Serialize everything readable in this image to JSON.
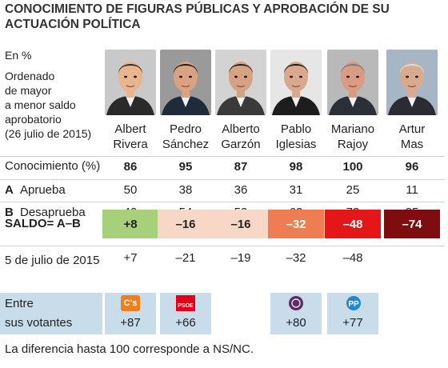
{
  "title": "CONOCIMIENTO DE FIGURAS PÚBLICAS Y APROBACIÓN DE SU ACTUACIÓN POLÍTICA",
  "unit_note": "En %",
  "order_note": [
    "Ordenado",
    "de mayor",
    "a menor saldo",
    "aprobatorio",
    "(26 julio de 2015)"
  ],
  "politicians": [
    {
      "name1": "Albert",
      "name2": "Rivera",
      "conocimiento": "86",
      "aprueba": "50",
      "desaprueba": "42",
      "saldo": "+8",
      "saldo_color": "#a6d07a",
      "saldo_text_color": "#222222",
      "prev": "+7",
      "voters": "+87",
      "party": "C's",
      "party_color": "#f07f1a",
      "skin": "#e8b58f",
      "hair": "#3b2a1e",
      "bg": "#c9c9c9",
      "suit": "#2a2a2a"
    },
    {
      "name1": "Pedro",
      "name2": "Sánchez",
      "conocimiento": "95",
      "aprueba": "38",
      "desaprueba": "54",
      "saldo": "–16",
      "saldo_color": "#f8d7c6",
      "saldo_text_color": "#222222",
      "prev": "–21",
      "voters": "+66",
      "party": "PSOE",
      "party_color": "#e1001a",
      "skin": "#d9a283",
      "hair": "#241a14",
      "bg": "#9a9a9a",
      "suit": "#1f2b3a"
    },
    {
      "name1": "Alberto",
      "name2": "Garzón",
      "conocimiento": "87",
      "aprueba": "36",
      "desaprueba": "52",
      "saldo": "–16",
      "saldo_color": "#f8d7c6",
      "saldo_text_color": "#222222",
      "prev": "–19",
      "voters": "",
      "party": "",
      "party_color": "",
      "skin": "#d6a284",
      "hair": "#2a1f18",
      "bg": "#d3d3d3",
      "suit": "#3a3a3a"
    },
    {
      "name1": "Pablo",
      "name2": "Iglesias",
      "conocimiento": "98",
      "aprueba": "31",
      "desaprueba": "63",
      "saldo": "–32",
      "saldo_color": "#ee7d54",
      "saldo_text_color": "#ffffff",
      "prev": "–32",
      "voters": "+80",
      "party": "Podemos",
      "party_color": "#5f2a68",
      "skin": "#d8a98c",
      "hair": "#1c1714",
      "bg": "#e6e6e6",
      "suit": "#1d1d1d"
    },
    {
      "name1": "Mariano",
      "name2": "Rajoy",
      "conocimiento": "100",
      "aprueba": "25",
      "desaprueba": "73",
      "saldo": "–48",
      "saldo_color": "#e3171a",
      "saldo_text_color": "#ffffff",
      "prev": "–48",
      "voters": "+77",
      "party": "PP",
      "party_color": "#1e88d2",
      "skin": "#d99c83",
      "hair": "#7a7a7a",
      "bg": "#b9b9b9",
      "suit": "#2b2f38"
    },
    {
      "name1": "Artur",
      "name2": "Mas",
      "conocimiento": "96",
      "aprueba": "11",
      "desaprueba": "85",
      "saldo": "–74",
      "saldo_color": "#7d0d0f",
      "saldo_text_color": "#ffffff",
      "prev": "",
      "voters": "",
      "party": "",
      "party_color": "",
      "skin": "#d8aa90",
      "hair": "#dedede",
      "bg": "#a7b6c4",
      "suit": "#2b2b33"
    }
  ],
  "rows": {
    "conocimiento": "Conocimiento (%)",
    "aprueba_letter": "A",
    "aprueba": "Aprueba",
    "desaprueba_letter": "B",
    "desaprueba": "Desaprueba",
    "saldo": "SALDO= A–B",
    "prev_date": "5 de julio de 2015",
    "voters_1": "Entre",
    "voters_2": "sus votantes"
  },
  "footnote": "La diferencia hasta 100 corresponde a NS/NC.",
  "colors": {
    "voters_bg": "#c8dcea",
    "rule": "#cfcfcf"
  }
}
